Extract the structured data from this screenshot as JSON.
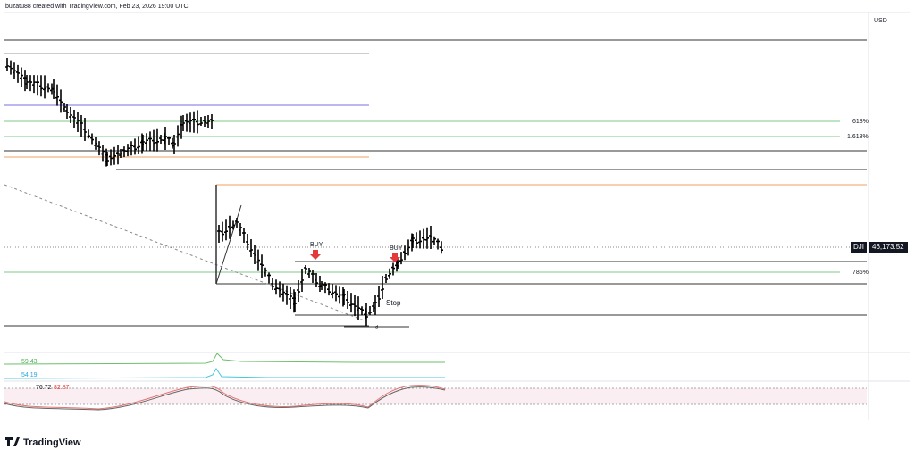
{
  "header": {
    "title": "buzatu88 created with TradingView.com, Feb 23, 2026 19:00 UTC",
    "currency": "USD"
  },
  "levels": {
    "fib_618": "618%",
    "fib_1618": "1.618%",
    "fib_786": "786%"
  },
  "price_tag": {
    "symbol": "DJI",
    "price": "46,173.52"
  },
  "annotations": {
    "buy_1": "BUY",
    "buy_2": "BUY",
    "stop": "Stop",
    "point": "d"
  },
  "indicators": {
    "line_1": "59.43",
    "line_2": "54.19",
    "rsi_1": "76.72",
    "rsi_2": "82.87"
  },
  "footer": {
    "brand": "TradingView"
  }
}
